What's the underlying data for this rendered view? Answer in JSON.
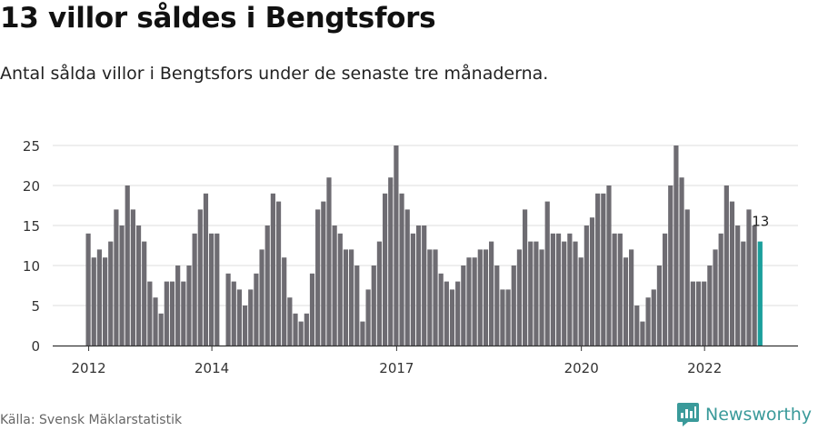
{
  "title": "13 villor såldes i Bengtsfors",
  "subtitle": "Antal sålda villor i Bengtsfors under de senaste tre månaderna.",
  "source": "Källa: Svensk Mäklarstatistik",
  "brand": {
    "name": "Newsworthy",
    "icon": "newsworthy-logo-icon"
  },
  "colors": {
    "bar": "#6e6c72",
    "highlight": "#1b9f9c",
    "grid": "#dddddd",
    "axis": "#333333",
    "text": "#333333"
  },
  "chart_data": {
    "type": "bar",
    "title": "13 villor såldes i Bengtsfors",
    "xlabel": "",
    "ylabel": "",
    "ylim": [
      0,
      25
    ],
    "yticks": [
      0,
      5,
      10,
      15,
      20,
      25
    ],
    "grid": true,
    "xticks": [
      {
        "label": "2012",
        "index": 0
      },
      {
        "label": "2014",
        "index": 22
      },
      {
        "label": "2017",
        "index": 55
      },
      {
        "label": "2020",
        "index": 88
      },
      {
        "label": "2022",
        "index": 110
      }
    ],
    "values": [
      14,
      11,
      12,
      11,
      13,
      17,
      15,
      20,
      17,
      15,
      13,
      8,
      6,
      4,
      8,
      8,
      10,
      8,
      10,
      14,
      17,
      19,
      14,
      14,
      0,
      9,
      8,
      7,
      5,
      7,
      9,
      12,
      15,
      19,
      18,
      11,
      6,
      4,
      3,
      4,
      9,
      17,
      18,
      21,
      15,
      14,
      12,
      12,
      10,
      3,
      7,
      10,
      13,
      19,
      21,
      25,
      19,
      17,
      14,
      15,
      15,
      12,
      12,
      9,
      8,
      7,
      8,
      10,
      11,
      11,
      12,
      12,
      13,
      10,
      7,
      7,
      10,
      12,
      17,
      13,
      13,
      12,
      18,
      14,
      14,
      13,
      14,
      13,
      11,
      15,
      16,
      19,
      19,
      20,
      14,
      14,
      11,
      12,
      5,
      3,
      6,
      7,
      10,
      14,
      20,
      25,
      21,
      17,
      8,
      8,
      8,
      10,
      12,
      14,
      20,
      18,
      15,
      13,
      17,
      15,
      13
    ],
    "highlight_index": 120,
    "highlight_label": "13"
  }
}
